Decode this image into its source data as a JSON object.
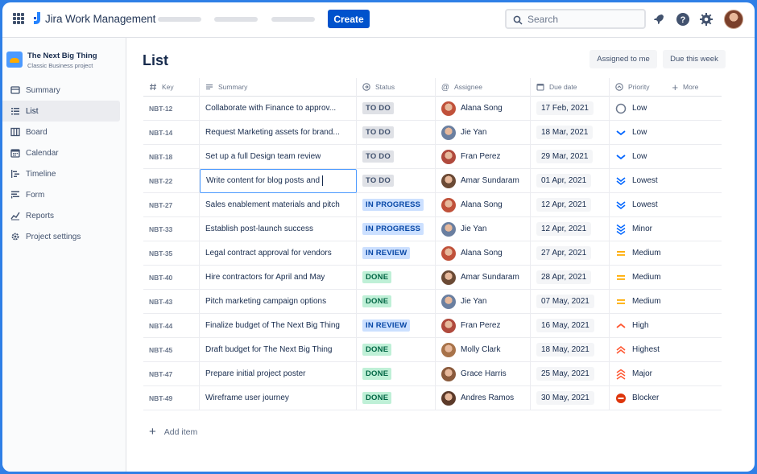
{
  "app": {
    "name": "Jira Work Management"
  },
  "topnav": {
    "create_label": "Create",
    "search_placeholder": "Search"
  },
  "project": {
    "name": "The Next Big Thing",
    "type": "Classic Business project"
  },
  "sidebar": {
    "items": [
      {
        "label": "Summary",
        "icon": "summary-icon",
        "active": false
      },
      {
        "label": "List",
        "icon": "list-icon",
        "active": true
      },
      {
        "label": "Board",
        "icon": "board-icon",
        "active": false
      },
      {
        "label": "Calendar",
        "icon": "calendar-icon",
        "active": false
      },
      {
        "label": "Timeline",
        "icon": "timeline-icon",
        "active": false
      },
      {
        "label": "Form",
        "icon": "form-icon",
        "active": false
      },
      {
        "label": "Reports",
        "icon": "reports-icon",
        "active": false
      },
      {
        "label": "Project settings",
        "icon": "gear-icon",
        "active": false
      }
    ]
  },
  "main": {
    "title": "List",
    "filters": {
      "assigned": "Assigned to me",
      "due": "Due this week"
    },
    "columns": {
      "key": "Key",
      "summary": "Summary",
      "status": "Status",
      "assignee": "Assignee",
      "due": "Due date",
      "priority": "Priority",
      "more": "More"
    },
    "rows": [
      {
        "key": "NBT-12",
        "summary": "Collaborate with Finance to approv...",
        "status": "TO DO",
        "status_kind": "todo",
        "assignee": "Alana Song",
        "avatar": "#c0513a",
        "due": "17 Feb, 2021",
        "priority": "Low",
        "priority_icon": "circle"
      },
      {
        "key": "NBT-14",
        "summary": "Request Marketing assets for brand...",
        "status": "TO DO",
        "status_kind": "todo",
        "assignee": "Jie Yan",
        "avatar": "#6a7fa0",
        "due": "18 Mar, 2021",
        "priority": "Low",
        "priority_icon": "chevron-down"
      },
      {
        "key": "NBT-18",
        "summary": "Set up a full Design team review",
        "status": "TO DO",
        "status_kind": "todo",
        "assignee": "Fran Perez",
        "avatar": "#b04a3d",
        "due": "29 Mar, 2021",
        "priority": "Low",
        "priority_icon": "chevron-down"
      },
      {
        "key": "NBT-22",
        "summary": "Write content for blog posts and",
        "status": "TO DO",
        "status_kind": "todo",
        "assignee": "Amar Sundaram",
        "avatar": "#6b4a35",
        "due": "01 Apr, 2021",
        "priority": "Lowest",
        "priority_icon": "double-down"
      },
      {
        "key": "NBT-27",
        "summary": "Sales enablement materials and pitch",
        "status": "IN PROGRESS",
        "status_kind": "progress",
        "assignee": "Alana Song",
        "avatar": "#c0513a",
        "due": "12 Apr, 2021",
        "priority": "Lowest",
        "priority_icon": "double-down"
      },
      {
        "key": "NBT-33",
        "summary": "Establish post-launch success",
        "status": "IN PROGRESS",
        "status_kind": "progress",
        "assignee": "Jie Yan",
        "avatar": "#6a7fa0",
        "due": "12 Apr, 2021",
        "priority": "Minor",
        "priority_icon": "triple-down"
      },
      {
        "key": "NBT-35",
        "summary": "Legal contract approval for vendors",
        "status": "IN REVIEW",
        "status_kind": "review",
        "assignee": "Alana Song",
        "avatar": "#c0513a",
        "due": "27 Apr, 2021",
        "priority": "Medium",
        "priority_icon": "medium"
      },
      {
        "key": "NBT-40",
        "summary": "Hire contractors for April and May",
        "status": "DONE",
        "status_kind": "done",
        "assignee": "Amar Sundaram",
        "avatar": "#6b4a35",
        "due": "28 Apr, 2021",
        "priority": "Medium",
        "priority_icon": "medium"
      },
      {
        "key": "NBT-43",
        "summary": "Pitch marketing campaign options",
        "status": "DONE",
        "status_kind": "done",
        "assignee": "Jie Yan",
        "avatar": "#6a7fa0",
        "due": "07 May, 2021",
        "priority": "Medium",
        "priority_icon": "medium"
      },
      {
        "key": "NBT-44",
        "summary": "Finalize budget of The Next Big Thing",
        "status": "IN REVIEW",
        "status_kind": "review",
        "assignee": "Fran Perez",
        "avatar": "#b04a3d",
        "due": "16 May, 2021",
        "priority": "High",
        "priority_icon": "chevron-up"
      },
      {
        "key": "NBT-45",
        "summary": "Draft budget for The Next Big Thing",
        "status": "DONE",
        "status_kind": "done",
        "assignee": "Molly Clark",
        "avatar": "#a8734a",
        "due": "18 May, 2021",
        "priority": "Highest",
        "priority_icon": "double-up"
      },
      {
        "key": "NBT-47",
        "summary": "Prepare initial project poster",
        "status": "DONE",
        "status_kind": "done",
        "assignee": "Grace Harris",
        "avatar": "#8a5a3c",
        "due": "25 May, 2021",
        "priority": "Major",
        "priority_icon": "triple-up"
      },
      {
        "key": "NBT-49",
        "summary": "Wireframe user journey",
        "status": "DONE",
        "status_kind": "done",
        "assignee": "Andres Ramos",
        "avatar": "#5c3a2a",
        "due": "30 May, 2021",
        "priority": "Blocker",
        "priority_icon": "blocker"
      }
    ],
    "add_item_label": "Add item"
  },
  "colors": {
    "accent": "#0052cc",
    "priority_low": "#0065ff",
    "priority_medium": "#ffab00",
    "priority_high": "#ff5630",
    "blocker": "#de350b"
  }
}
